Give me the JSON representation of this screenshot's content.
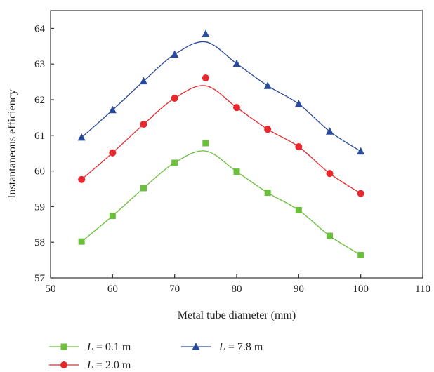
{
  "chart_data": {
    "type": "line",
    "title": "",
    "xlabel": "Metal tube diameter (mm)",
    "ylabel": "Instantaneous efficiency",
    "xlim": [
      50,
      110
    ],
    "ylim": [
      57,
      64.5
    ],
    "xticks": [
      50,
      60,
      70,
      80,
      90,
      100,
      110
    ],
    "yticks": [
      57,
      58,
      59,
      60,
      61,
      62,
      63,
      64
    ],
    "x": [
      55,
      60,
      65,
      70,
      75,
      80,
      85,
      90,
      95,
      100
    ],
    "legend_position": "bottom",
    "grid": false,
    "series": [
      {
        "name": "L = 0.1 m",
        "label_var": "L",
        "label_rest": " = 0.1 m",
        "color": "#6cbf3c",
        "marker": "square",
        "values": [
          58.02,
          58.74,
          59.52,
          60.23,
          60.78,
          59.98,
          59.39,
          58.9,
          58.18,
          57.64
        ]
      },
      {
        "name": "L = 2.0 m",
        "label_var": "L",
        "label_rest": " = 2.0 m",
        "color": "#e8262b",
        "marker": "circle",
        "values": [
          59.76,
          60.51,
          61.31,
          62.04,
          62.61,
          61.78,
          61.17,
          60.68,
          59.93,
          59.37
        ]
      },
      {
        "name": "L = 7.8 m",
        "label_var": "L",
        "label_rest": " = 7.8 m",
        "color": "#2a4b9b",
        "marker": "triangle",
        "values": [
          60.94,
          61.71,
          62.52,
          63.27,
          63.84,
          63.01,
          62.39,
          61.88,
          61.11,
          60.55
        ]
      }
    ]
  }
}
